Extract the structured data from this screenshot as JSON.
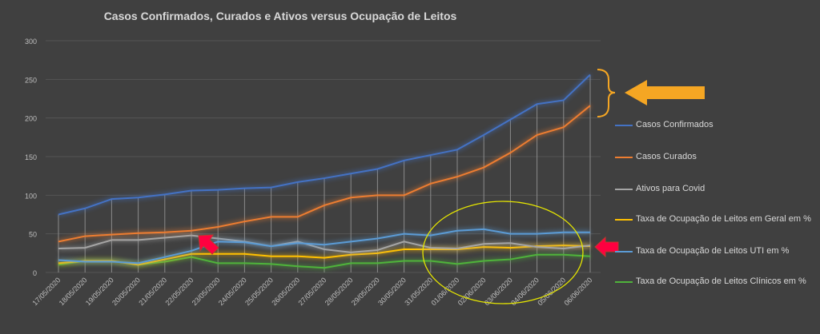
{
  "chart_data": {
    "type": "line",
    "title": "Casos Confirmados, Curados e Ativos versus Ocupação de Leitos",
    "xlabel": "",
    "ylabel": "",
    "ylim": [
      0,
      300
    ],
    "yticks": [
      0,
      50,
      100,
      150,
      200,
      250,
      300
    ],
    "legend_position": "right",
    "categories": [
      "17/05/2020",
      "18/05/2020",
      "19/05/2020",
      "20/05/2020",
      "21/05/2020",
      "22/05/2020",
      "23/05/2020",
      "24/05/2020",
      "25/05/2020",
      "26/05/2020",
      "27/05/2020",
      "28/05/2020",
      "29/05/2020",
      "30/05/2020",
      "31/05/2020",
      "01/06/2020",
      "02/06/2020",
      "03/06/2020",
      "04/06/2020",
      "05/06/2020",
      "06/06/2020"
    ],
    "series": [
      {
        "name": "Casos Confirmados",
        "color": "#4472c4",
        "values": [
          75,
          83,
          95,
          97,
          101,
          106,
          107,
          109,
          110,
          117,
          122,
          128,
          134,
          145,
          152,
          159,
          178,
          198,
          218,
          223,
          256
        ]
      },
      {
        "name": "Casos Curados",
        "color": "#ed7d31",
        "values": [
          40,
          47,
          49,
          51,
          52,
          54,
          59,
          66,
          72,
          72,
          87,
          97,
          100,
          100,
          115,
          124,
          136,
          155,
          178,
          188,
          216
        ]
      },
      {
        "name": "Ativos para Covid",
        "color": "#a5a5a5",
        "values": [
          31,
          32,
          42,
          42,
          45,
          48,
          44,
          40,
          34,
          40,
          30,
          26,
          29,
          40,
          32,
          31,
          37,
          38,
          33,
          31,
          35
        ]
      },
      {
        "name": "Taxa de Ocupação de Leitos em Geral  em %",
        "color": "#ffc000",
        "values": [
          12,
          15,
          15,
          10,
          17,
          24,
          24,
          24,
          21,
          21,
          19,
          23,
          25,
          30,
          30,
          30,
          33,
          32,
          34,
          35,
          34
        ]
      },
      {
        "name": "Taxa de Ocupação de Leitos UTI em %",
        "color": "#5b9bd5",
        "values": [
          16,
          14,
          14,
          12,
          20,
          28,
          40,
          39,
          34,
          38,
          36,
          40,
          44,
          50,
          48,
          54,
          56,
          50,
          50,
          52,
          52
        ]
      },
      {
        "name": "Taxa de Ocupação de Leitos Clínicos em %",
        "color": "#4fb33b",
        "values": [
          10,
          15,
          15,
          10,
          14,
          20,
          12,
          12,
          11,
          8,
          6,
          12,
          12,
          15,
          15,
          11,
          15,
          17,
          23,
          23,
          21
        ]
      }
    ]
  }
}
